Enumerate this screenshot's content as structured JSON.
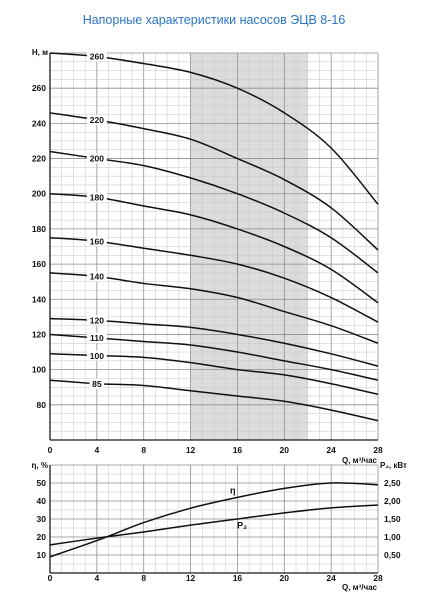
{
  "title": "Напорные характеристики насосов ЭЦВ 8-16",
  "colors": {
    "title": "#2a74c6",
    "curve": "#111111",
    "axis": "#1a1a1a",
    "grid": "#c4c4c4",
    "grid_major": "#8e8e8e",
    "shade": "#dcdcdc"
  },
  "chart_data": [
    {
      "type": "line",
      "xlabel": "Q, м³/час",
      "ylabel": "H, м",
      "xlim": [
        0,
        28
      ],
      "ylim": [
        60,
        280
      ],
      "x_ticks": [
        0,
        4,
        8,
        12,
        16,
        20,
        24,
        28
      ],
      "y_ticks": [
        80,
        100,
        120,
        140,
        160,
        180,
        200,
        220,
        240,
        260
      ],
      "grid": true,
      "shaded_x_range": [
        12,
        22
      ],
      "x": [
        0,
        4,
        8,
        12,
        16,
        20,
        24,
        28
      ],
      "series": [
        {
          "name": "260",
          "values": [
            280,
            278,
            274,
            269,
            260,
            246,
            226,
            194
          ]
        },
        {
          "name": "220",
          "values": [
            246,
            242,
            237,
            231,
            220,
            208,
            192,
            168
          ]
        },
        {
          "name": "200",
          "values": [
            224,
            220,
            216,
            209,
            200,
            189,
            175,
            155
          ]
        },
        {
          "name": "180",
          "values": [
            200,
            198,
            193,
            188,
            180,
            170,
            157,
            138
          ]
        },
        {
          "name": "160",
          "values": [
            175,
            173,
            169,
            165,
            160,
            152,
            141,
            127
          ]
        },
        {
          "name": "140",
          "values": [
            155,
            153,
            149,
            146,
            141,
            133,
            125,
            115
          ]
        },
        {
          "name": "120",
          "values": [
            129,
            128,
            126,
            124,
            120,
            115,
            109,
            102
          ]
        },
        {
          "name": "110",
          "values": [
            120,
            118,
            116,
            114,
            110,
            105,
            100,
            94
          ]
        },
        {
          "name": "100",
          "values": [
            109,
            108,
            107,
            104,
            100,
            97,
            92,
            86
          ]
        },
        {
          "name": "85",
          "values": [
            94,
            92,
            91,
            88,
            85,
            82,
            77,
            71
          ]
        }
      ]
    },
    {
      "type": "line",
      "xlabel": "Q, м³/час",
      "ylabel_left": "η, %",
      "ylabel_right": "P₂, кВт",
      "xlim": [
        0,
        28
      ],
      "ylim_left": [
        0,
        60
      ],
      "ylim_right": [
        0,
        3
      ],
      "x_ticks": [
        0,
        4,
        8,
        12,
        16,
        20,
        24,
        28
      ],
      "y_ticks_left": [
        10,
        20,
        30,
        40,
        50
      ],
      "y_ticks_right": [
        0.5,
        1,
        1.5,
        2,
        2.5
      ],
      "y_tick_labels_right": [
        "0,50",
        "1,00",
        "1,50",
        "2,00",
        "2,50"
      ],
      "grid": true,
      "x": [
        0,
        4,
        8,
        12,
        16,
        20,
        24,
        28
      ],
      "series_left": [
        {
          "name": "η",
          "values": [
            9,
            18,
            28,
            36,
            42,
            47,
            50,
            49
          ]
        }
      ],
      "series_right": [
        {
          "name": "P₂",
          "values": [
            0.78,
            0.97,
            1.14,
            1.33,
            1.5,
            1.67,
            1.81,
            1.89
          ]
        }
      ]
    }
  ]
}
